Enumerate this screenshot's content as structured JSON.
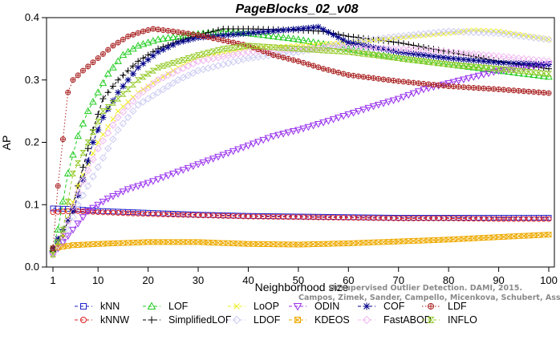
{
  "chart_data": {
    "type": "line",
    "title": "PageBlocks_02_v08",
    "xlabel": "Neighborhood size",
    "ylabel": "AP",
    "xlim": [
      1,
      100
    ],
    "ylim": [
      0,
      0.4
    ],
    "x_ticks": [
      1,
      10,
      20,
      30,
      40,
      50,
      60,
      70,
      80,
      90,
      100
    ],
    "y_ticks": [
      0.0,
      0.1,
      0.2,
      0.3,
      0.4
    ],
    "y_tick_labels": [
      "0.0",
      "0.1",
      "0.2",
      "0.3",
      "0.4"
    ],
    "grid": false,
    "legend_position": "bottom",
    "credit_lines": [
      "Unsupervised Outlier Detection. DAMI, 2015.",
      "Campos, Zimek, Sander, Campello, Micenkova, Schubert, Assent, Houle"
    ],
    "series": [
      {
        "name": "kNN",
        "color": "#2222cc",
        "marker": "square",
        "dash": "dashed",
        "points": [
          [
            1,
            0.094
          ],
          [
            5,
            0.093
          ],
          [
            10,
            0.09
          ],
          [
            20,
            0.087
          ],
          [
            30,
            0.084
          ],
          [
            40,
            0.082
          ],
          [
            50,
            0.081
          ],
          [
            60,
            0.08
          ],
          [
            70,
            0.079
          ],
          [
            80,
            0.079
          ],
          [
            90,
            0.079
          ],
          [
            100,
            0.079
          ]
        ]
      },
      {
        "name": "kNNW",
        "color": "#dd2222",
        "marker": "circle",
        "dash": "dashed",
        "points": [
          [
            1,
            0.088
          ],
          [
            5,
            0.09
          ],
          [
            10,
            0.088
          ],
          [
            20,
            0.085
          ],
          [
            30,
            0.083
          ],
          [
            40,
            0.081
          ],
          [
            50,
            0.08
          ],
          [
            60,
            0.079
          ],
          [
            70,
            0.078
          ],
          [
            80,
            0.078
          ],
          [
            90,
            0.077
          ],
          [
            100,
            0.077
          ]
        ]
      },
      {
        "name": "LOF",
        "color": "#22cc22",
        "marker": "triangle",
        "dash": "dashed",
        "points": [
          [
            1,
            0.03
          ],
          [
            2,
            0.06
          ],
          [
            4,
            0.15
          ],
          [
            6,
            0.21
          ],
          [
            8,
            0.25
          ],
          [
            10,
            0.28
          ],
          [
            12,
            0.31
          ],
          [
            15,
            0.34
          ],
          [
            18,
            0.355
          ],
          [
            22,
            0.365
          ],
          [
            28,
            0.372
          ],
          [
            35,
            0.378
          ],
          [
            40,
            0.375
          ],
          [
            50,
            0.365
          ],
          [
            60,
            0.35
          ],
          [
            70,
            0.335
          ],
          [
            80,
            0.325
          ],
          [
            90,
            0.315
          ],
          [
            100,
            0.305
          ]
        ]
      },
      {
        "name": "SimplifiedLOF",
        "color": "#000000",
        "marker": "plus",
        "dash": "dashed",
        "points": [
          [
            1,
            0.025
          ],
          [
            3,
            0.05
          ],
          [
            5,
            0.1
          ],
          [
            7,
            0.16
          ],
          [
            9,
            0.22
          ],
          [
            11,
            0.27
          ],
          [
            14,
            0.3
          ],
          [
            18,
            0.33
          ],
          [
            22,
            0.35
          ],
          [
            26,
            0.362
          ],
          [
            30,
            0.372
          ],
          [
            35,
            0.382
          ],
          [
            40,
            0.382
          ],
          [
            50,
            0.38
          ],
          [
            55,
            0.378
          ],
          [
            60,
            0.37
          ],
          [
            70,
            0.36
          ],
          [
            80,
            0.345
          ],
          [
            90,
            0.33
          ],
          [
            100,
            0.318
          ]
        ]
      },
      {
        "name": "LoOP",
        "color": "#eeee22",
        "marker": "cross",
        "dash": "dashed",
        "points": [
          [
            1,
            0.02
          ],
          [
            3,
            0.05
          ],
          [
            6,
            0.13
          ],
          [
            10,
            0.2
          ],
          [
            14,
            0.25
          ],
          [
            18,
            0.28
          ],
          [
            22,
            0.3
          ],
          [
            26,
            0.32
          ],
          [
            30,
            0.335
          ],
          [
            40,
            0.35
          ],
          [
            50,
            0.355
          ],
          [
            60,
            0.36
          ],
          [
            70,
            0.368
          ],
          [
            80,
            0.375
          ],
          [
            85,
            0.38
          ],
          [
            90,
            0.378
          ],
          [
            100,
            0.365
          ]
        ]
      },
      {
        "name": "LDOF",
        "color": "#ccccf2",
        "marker": "diamond",
        "dash": "dashed",
        "points": [
          [
            1,
            0.02
          ],
          [
            3,
            0.04
          ],
          [
            6,
            0.1
          ],
          [
            10,
            0.16
          ],
          [
            14,
            0.22
          ],
          [
            18,
            0.26
          ],
          [
            22,
            0.28
          ],
          [
            26,
            0.3
          ],
          [
            30,
            0.315
          ],
          [
            40,
            0.335
          ],
          [
            50,
            0.345
          ],
          [
            60,
            0.36
          ],
          [
            70,
            0.37
          ],
          [
            80,
            0.378
          ],
          [
            90,
            0.375
          ],
          [
            100,
            0.365
          ]
        ]
      },
      {
        "name": "ODIN",
        "color": "#9933ee",
        "marker": "tri-down",
        "dash": "dashed",
        "points": [
          [
            1,
            0.02
          ],
          [
            3,
            0.04
          ],
          [
            5,
            0.06
          ],
          [
            8,
            0.09
          ],
          [
            12,
            0.11
          ],
          [
            16,
            0.125
          ],
          [
            20,
            0.135
          ],
          [
            25,
            0.15
          ],
          [
            30,
            0.165
          ],
          [
            35,
            0.18
          ],
          [
            40,
            0.195
          ],
          [
            45,
            0.21
          ],
          [
            50,
            0.22
          ],
          [
            55,
            0.232
          ],
          [
            60,
            0.245
          ],
          [
            65,
            0.258
          ],
          [
            70,
            0.27
          ],
          [
            75,
            0.285
          ],
          [
            80,
            0.295
          ],
          [
            85,
            0.305
          ],
          [
            90,
            0.315
          ],
          [
            95,
            0.32
          ],
          [
            100,
            0.326
          ]
        ]
      },
      {
        "name": "KDEOS",
        "color": "#eeaa00",
        "marker": "square-x",
        "dash": "dashed",
        "points": [
          [
            1,
            0.03
          ],
          [
            5,
            0.035
          ],
          [
            10,
            0.037
          ],
          [
            20,
            0.04
          ],
          [
            30,
            0.04
          ],
          [
            40,
            0.037
          ],
          [
            50,
            0.036
          ],
          [
            60,
            0.038
          ],
          [
            70,
            0.041
          ],
          [
            80,
            0.044
          ],
          [
            90,
            0.048
          ],
          [
            100,
            0.052
          ]
        ]
      },
      {
        "name": "COF",
        "color": "#000088",
        "marker": "star",
        "dash": "dashed",
        "points": [
          [
            1,
            0.03
          ],
          [
            3,
            0.06
          ],
          [
            5,
            0.09
          ],
          [
            7,
            0.14
          ],
          [
            9,
            0.2
          ],
          [
            11,
            0.24
          ],
          [
            14,
            0.28
          ],
          [
            18,
            0.32
          ],
          [
            22,
            0.345
          ],
          [
            26,
            0.36
          ],
          [
            30,
            0.368
          ],
          [
            40,
            0.375
          ],
          [
            50,
            0.382
          ],
          [
            54,
            0.385
          ],
          [
            60,
            0.36
          ],
          [
            70,
            0.345
          ],
          [
            80,
            0.335
          ],
          [
            90,
            0.328
          ],
          [
            100,
            0.325
          ]
        ]
      },
      {
        "name": "FastABOD",
        "color": "#f0b8f0",
        "marker": "diamond",
        "dash": "dashed",
        "points": [
          [
            1,
            0.02
          ],
          [
            3,
            0.05
          ],
          [
            6,
            0.12
          ],
          [
            10,
            0.19
          ],
          [
            14,
            0.24
          ],
          [
            18,
            0.275
          ],
          [
            22,
            0.3
          ],
          [
            26,
            0.315
          ],
          [
            30,
            0.33
          ],
          [
            40,
            0.345
          ],
          [
            50,
            0.35
          ],
          [
            60,
            0.352
          ],
          [
            70,
            0.35
          ],
          [
            80,
            0.345
          ],
          [
            90,
            0.338
          ],
          [
            100,
            0.33
          ]
        ]
      },
      {
        "name": "LDF",
        "color": "#aa2222",
        "marker": "circle-plus",
        "dash": "dotted",
        "points": [
          [
            1,
            0.03
          ],
          [
            2,
            0.13
          ],
          [
            3,
            0.205
          ],
          [
            4,
            0.28
          ],
          [
            5,
            0.3
          ],
          [
            7,
            0.315
          ],
          [
            10,
            0.335
          ],
          [
            13,
            0.355
          ],
          [
            16,
            0.37
          ],
          [
            19,
            0.378
          ],
          [
            21,
            0.382
          ],
          [
            25,
            0.378
          ],
          [
            30,
            0.372
          ],
          [
            40,
            0.355
          ],
          [
            45,
            0.34
          ],
          [
            50,
            0.33
          ],
          [
            55,
            0.318
          ],
          [
            60,
            0.308
          ],
          [
            70,
            0.298
          ],
          [
            80,
            0.29
          ],
          [
            90,
            0.285
          ],
          [
            100,
            0.279
          ]
        ]
      },
      {
        "name": "INFLO",
        "color": "#99cc33",
        "marker": "hourglass",
        "dash": "dashed",
        "points": [
          [
            1,
            0.02
          ],
          [
            3,
            0.06
          ],
          [
            5,
            0.15
          ],
          [
            8,
            0.2
          ],
          [
            11,
            0.25
          ],
          [
            14,
            0.27
          ],
          [
            18,
            0.3
          ],
          [
            22,
            0.32
          ],
          [
            26,
            0.33
          ],
          [
            30,
            0.34
          ],
          [
            35,
            0.35
          ],
          [
            40,
            0.355
          ],
          [
            50,
            0.35
          ],
          [
            60,
            0.345
          ],
          [
            70,
            0.335
          ],
          [
            80,
            0.325
          ],
          [
            90,
            0.318
          ],
          [
            100,
            0.31
          ]
        ]
      }
    ]
  }
}
